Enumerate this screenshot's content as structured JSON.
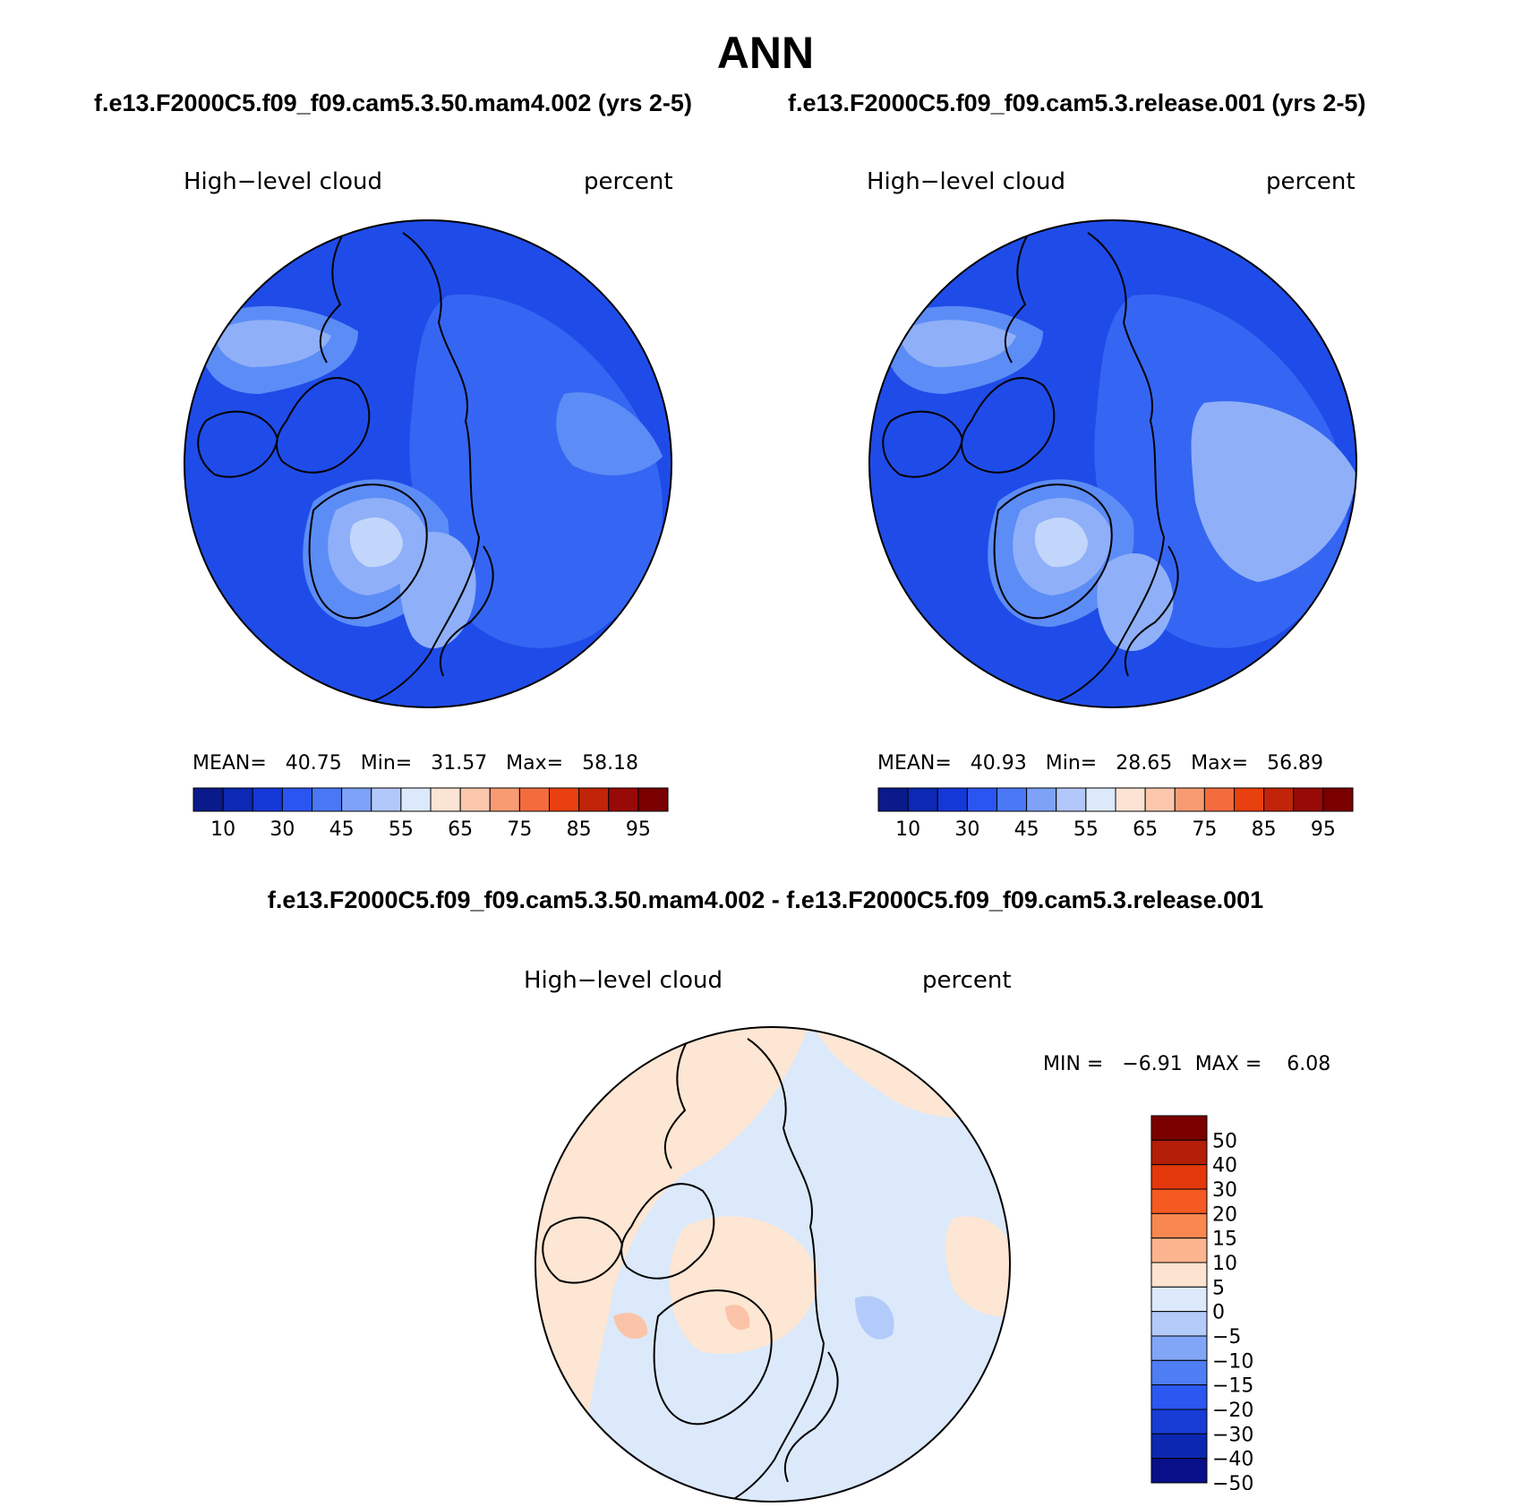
{
  "title": "ANN",
  "case_titles": {
    "left": "f.e13.F2000C5.f09_f09.cam5.3.50.mam4.002 (yrs 2-5)",
    "right": "f.e13.F2000C5.f09_f09.cam5.3.release.001 (yrs 2-5)"
  },
  "diff_title": "f.e13.F2000C5.f09_f09.cam5.3.50.mam4.002 - f.e13.F2000C5.f09_f09.cam5.3.release.001",
  "panels": [
    {
      "variable": "High−level cloud",
      "units": "percent",
      "stats": "MEAN=   40.75   Min=   31.57   Max=   58.18",
      "mean": 40.75,
      "min": 31.57,
      "max": 58.18
    },
    {
      "variable": "High−level cloud",
      "units": "percent",
      "stats": "MEAN=   40.93   Min=   28.65   Max=   56.89",
      "mean": 40.93,
      "min": 28.65,
      "max": 56.89
    },
    {
      "variable": "High−level cloud",
      "units": "percent",
      "stats": "MIN =   −6.91  MAX =    6.08",
      "min": -6.91,
      "max": 6.08
    }
  ],
  "colorbar_abs": {
    "colors": [
      "#0a1a8a",
      "#0c28b4",
      "#1438d8",
      "#2a55f0",
      "#4a78f5",
      "#7ea2f7",
      "#b2c8fa",
      "#dce9fb",
      "#fce4d4",
      "#fbc8ad",
      "#f89b72",
      "#f46c3e",
      "#e8400f",
      "#c12408",
      "#980a08",
      "#7a0000"
    ],
    "tick_labels": [
      "10",
      "30",
      "45",
      "55",
      "65",
      "75",
      "85",
      "95"
    ]
  },
  "colorbar_diff": {
    "colors": [
      "#7a0000",
      "#b21e08",
      "#e3380c",
      "#f45a22",
      "#f98850",
      "#fcb48e",
      "#fde3d1",
      "#dbe9fb",
      "#b4cbfa",
      "#82a6f7",
      "#4f7df4",
      "#2a58f0",
      "#163cd4",
      "#0c28b0",
      "#080f88"
    ],
    "tick_labels": [
      "50",
      "40",
      "30",
      "20",
      "15",
      "10",
      "5",
      "0",
      "−5",
      "−10",
      "−15",
      "−20",
      "−30",
      "−40",
      "−50"
    ]
  },
  "map_colors": {
    "deep": "#1f4ce8",
    "mid": "#3566f3",
    "light": "#5c8cf6",
    "lighter": "#8fb0f8",
    "palest": "#c2d6fb",
    "diff_neg": "#dbe9fb",
    "diff_pos": "#fde6d3",
    "diff_pos2": "#fbc3a8",
    "diff_neg2": "#b3cbfa",
    "coast": "#000000"
  }
}
